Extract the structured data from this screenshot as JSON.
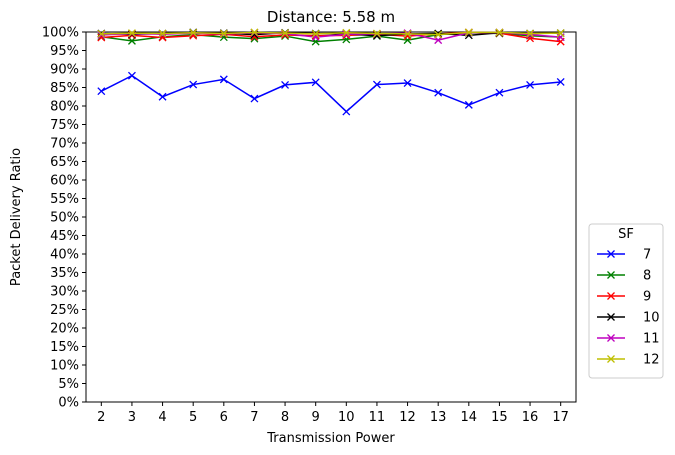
{
  "chart_data": {
    "type": "line",
    "title": "Distance: 5.58 m",
    "xlabel": "Transmission Power",
    "ylabel": "Packet Delivery Ratio",
    "x": [
      2,
      3,
      4,
      5,
      6,
      7,
      8,
      9,
      10,
      11,
      12,
      13,
      14,
      15,
      16,
      17
    ],
    "xlim": [
      1.5,
      17.5
    ],
    "ylim": [
      0,
      100
    ],
    "y_unit": "%",
    "y_ticks": [
      0,
      5,
      10,
      15,
      20,
      25,
      30,
      35,
      40,
      45,
      50,
      55,
      60,
      65,
      70,
      75,
      80,
      85,
      90,
      95,
      100
    ],
    "grid": false,
    "marker": "x",
    "legend": {
      "title": "SF",
      "placement": "right, outside plot area"
    },
    "series": [
      {
        "name": "7",
        "color": "#0000ff",
        "values": [
          84,
          88.2,
          82.5,
          85.8,
          87.2,
          82,
          85.7,
          86.4,
          78.5,
          85.8,
          86.2,
          83.6,
          80.3,
          83.6,
          85.7,
          86.5
        ]
      },
      {
        "name": "8",
        "color": "#008000",
        "values": [
          98.7,
          97.6,
          98.7,
          99.3,
          98.6,
          98.2,
          98.9,
          97.4,
          98,
          98.9,
          97.8,
          99.3,
          99.8,
          99.6,
          99,
          98.6
        ]
      },
      {
        "name": "9",
        "color": "#ff0000",
        "values": [
          98.5,
          99.1,
          98.5,
          99,
          99.4,
          98.7,
          99.2,
          99,
          99.1,
          99.4,
          98.9,
          99.5,
          99.9,
          99.7,
          98.3,
          97.4
        ]
      },
      {
        "name": "10",
        "color": "#000000",
        "values": [
          99.6,
          99.4,
          99.6,
          99.9,
          99.7,
          99.3,
          99.8,
          99.6,
          99.5,
          99,
          99.5,
          99.6,
          99.1,
          99.8,
          99.6,
          99.7
        ]
      },
      {
        "name": "11",
        "color": "#bf00bf",
        "values": [
          99.2,
          99.6,
          99.4,
          99.7,
          99.5,
          99.8,
          99.6,
          98.6,
          99.4,
          99.5,
          99.7,
          97.8,
          99.8,
          99.9,
          99.3,
          98.6
        ]
      },
      {
        "name": "12",
        "color": "#bfbf00",
        "values": [
          99.5,
          99.7,
          99.6,
          99.8,
          99.6,
          99.9,
          99.7,
          99.5,
          99.8,
          99.6,
          99.5,
          99.3,
          99.9,
          99.9,
          99.6,
          99.7
        ]
      }
    ]
  }
}
